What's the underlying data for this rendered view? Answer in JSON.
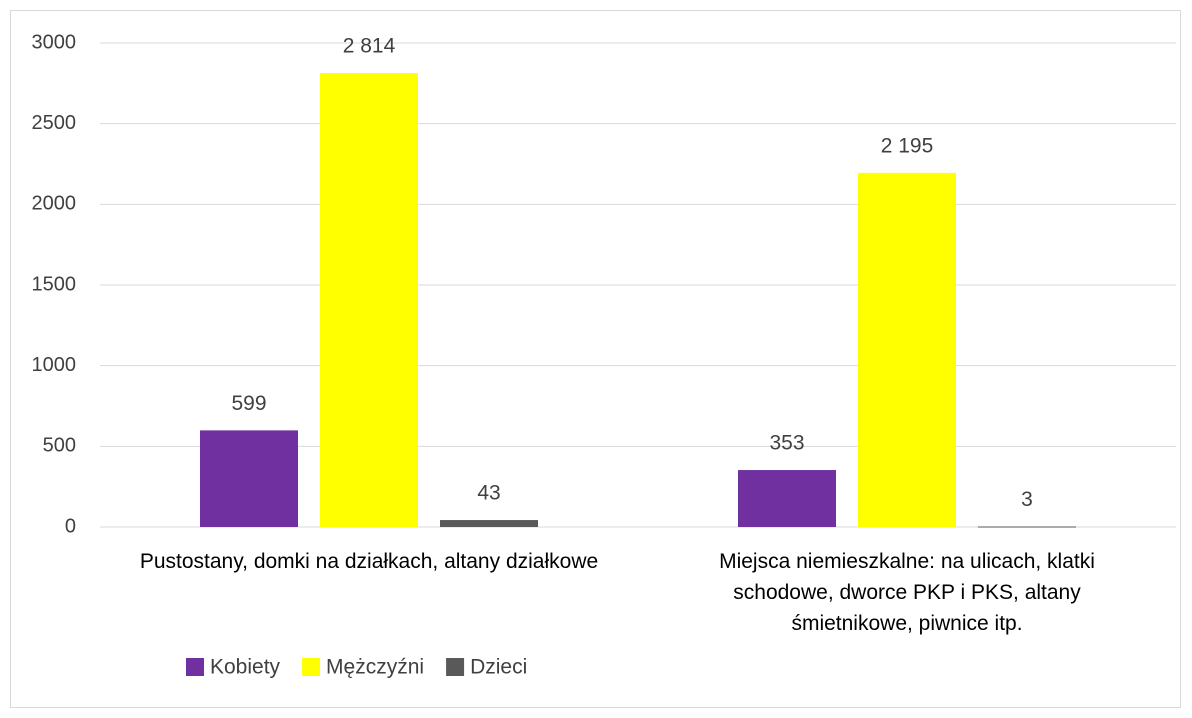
{
  "chart_data": {
    "type": "bar",
    "categories": [
      "Pustostany, domki na działkach, altany działkowe",
      "Miejsca niemieszkalne: na ulicach, klatki schodowe, dworce PKP i PKS, altany śmietnikowe, piwnice itp."
    ],
    "series": [
      {
        "name": "Kobiety",
        "color": "#7030a0",
        "values": [
          599,
          353
        ],
        "value_labels": [
          "599",
          "353"
        ]
      },
      {
        "name": "Mężczyźni",
        "color": "#ffff00",
        "values": [
          2814,
          2195
        ],
        "value_labels": [
          "2 814",
          "2 195"
        ]
      },
      {
        "name": "Dzieci",
        "color": "#595959",
        "values": [
          43,
          3
        ],
        "value_labels": [
          "43",
          "3"
        ]
      }
    ],
    "ylim": [
      0,
      3000
    ],
    "yticks": [
      0,
      500,
      1000,
      1500,
      2000,
      2500,
      3000
    ],
    "grid": true,
    "legend": "bottom"
  }
}
